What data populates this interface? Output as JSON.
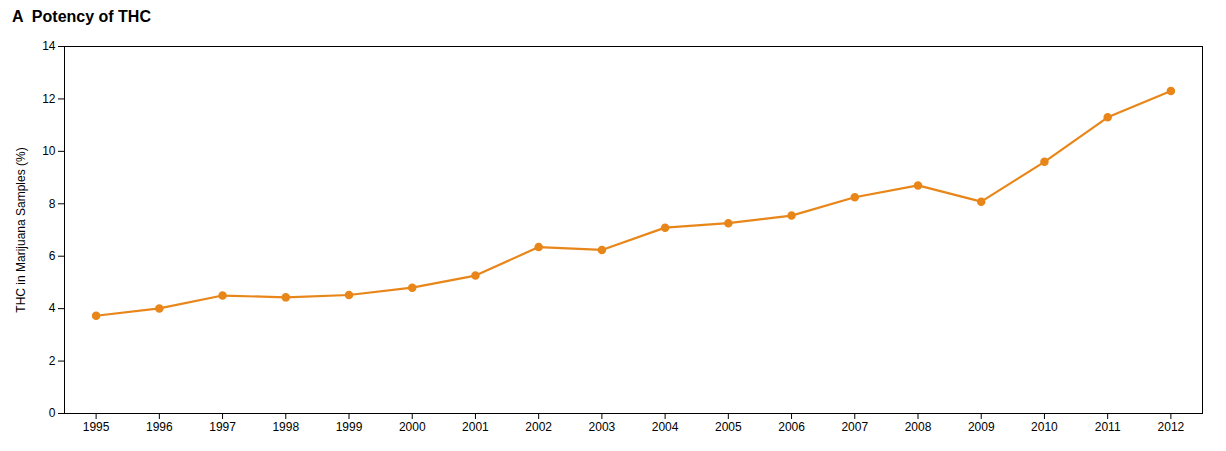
{
  "chart_data": {
    "type": "line",
    "title": "A  Potency of THC",
    "y_label": "THC in Marijuana Samples (%)",
    "x": [
      1995,
      1996,
      1997,
      1998,
      1999,
      2000,
      2001,
      2002,
      2003,
      2004,
      2005,
      2006,
      2007,
      2008,
      2009,
      2010,
      2011,
      2012
    ],
    "values": [
      3.73,
      4.01,
      4.5,
      4.43,
      4.52,
      4.8,
      5.26,
      6.35,
      6.24,
      7.09,
      7.26,
      7.55,
      8.25,
      8.7,
      8.08,
      9.6,
      11.3,
      12.3
    ],
    "color": "#E8861A",
    "marker": "circle",
    "xlim": [
      1994.5,
      2012.5
    ],
    "xticks": [
      1995,
      1996,
      1997,
      1998,
      1999,
      2000,
      2001,
      2002,
      2003,
      2004,
      2005,
      2006,
      2007,
      2008,
      2009,
      2010,
      2011,
      2012
    ],
    "ylim": [
      0,
      14
    ],
    "yticks": [
      0,
      2,
      4,
      6,
      8,
      10,
      12,
      14
    ],
    "grid": false
  }
}
